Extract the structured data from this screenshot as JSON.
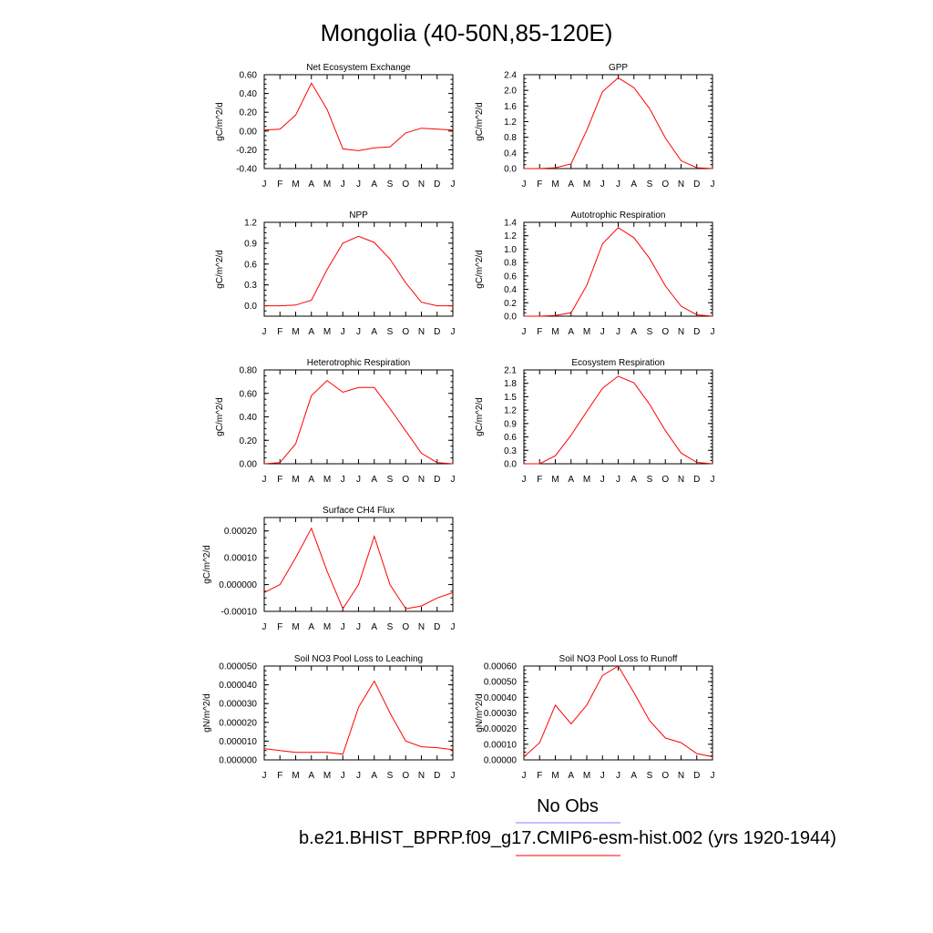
{
  "page_title": "Mongolia (40-50N,85-120E)",
  "months": [
    "J",
    "F",
    "M",
    "A",
    "M",
    "J",
    "J",
    "A",
    "S",
    "O",
    "N",
    "D",
    "J"
  ],
  "legend": {
    "obs_label": "No Obs",
    "obs_color": "#7f7fff",
    "model_label": "b.e21.BHIST_BPRP.f09_g17.CMIP6-esm-hist.002 (yrs 1920-1944)",
    "model_color": "#ff0000"
  },
  "chart_data": [
    {
      "type": "line",
      "title": "Net Ecosystem Exchange",
      "ylabel": "gC/m^2/d",
      "ylim": [
        -0.4,
        0.6
      ],
      "y_ticks": [
        "-0.40",
        "-0.20",
        "0.00",
        "0.20",
        "0.40",
        "0.60"
      ],
      "x": [
        "J",
        "F",
        "M",
        "A",
        "M",
        "J",
        "J",
        "A",
        "S",
        "O",
        "N",
        "D",
        "J"
      ],
      "series": [
        {
          "values": [
            0.01,
            0.02,
            0.17,
            0.51,
            0.23,
            -0.19,
            -0.21,
            -0.18,
            -0.17,
            -0.02,
            0.03,
            0.02,
            0.01
          ]
        }
      ],
      "grid": false
    },
    {
      "type": "line",
      "title": "GPP",
      "ylabel": "gC/m^2/d",
      "ylim": [
        0,
        2.4
      ],
      "y_ticks": [
        "0.0",
        "0.4",
        "0.8",
        "1.2",
        "1.6",
        "2.0",
        "2.4"
      ],
      "x": [
        "J",
        "F",
        "M",
        "A",
        "M",
        "J",
        "J",
        "A",
        "S",
        "O",
        "N",
        "D",
        "J"
      ],
      "series": [
        {
          "values": [
            0.0,
            0.0,
            0.02,
            0.12,
            0.98,
            1.97,
            2.32,
            2.07,
            1.53,
            0.78,
            0.2,
            0.02,
            0.0
          ]
        }
      ],
      "grid": false
    },
    {
      "type": "line",
      "title": "NPP",
      "ylabel": "gC/m^2/d",
      "ylim": [
        -0.15,
        1.2
      ],
      "y_ticks": [
        "0.0",
        "0.3",
        "0.6",
        "0.9",
        "1.2"
      ],
      "x": [
        "J",
        "F",
        "M",
        "A",
        "M",
        "J",
        "J",
        "A",
        "S",
        "O",
        "N",
        "D",
        "J"
      ],
      "series": [
        {
          "values": [
            0.0,
            0.0,
            0.01,
            0.08,
            0.52,
            0.9,
            1.0,
            0.91,
            0.67,
            0.33,
            0.05,
            0.0,
            0.0
          ]
        }
      ],
      "grid": false
    },
    {
      "type": "line",
      "title": "Autotrophic Respiration",
      "ylabel": "gC/m^2/d",
      "ylim": [
        0,
        1.4
      ],
      "y_ticks": [
        "0.0",
        "0.2",
        "0.4",
        "0.6",
        "0.8",
        "1.0",
        "1.2",
        "1.4"
      ],
      "x": [
        "J",
        "F",
        "M",
        "A",
        "M",
        "J",
        "J",
        "A",
        "S",
        "O",
        "N",
        "D",
        "J"
      ],
      "series": [
        {
          "values": [
            0.0,
            0.0,
            0.01,
            0.05,
            0.46,
            1.08,
            1.32,
            1.17,
            0.86,
            0.45,
            0.15,
            0.02,
            0.0
          ]
        }
      ],
      "grid": false
    },
    {
      "type": "line",
      "title": "Heterotrophic Respiration",
      "ylabel": "gC/m^2/d",
      "ylim": [
        0,
        0.8
      ],
      "y_ticks": [
        "0.00",
        "0.20",
        "0.40",
        "0.60",
        "0.80"
      ],
      "x": [
        "J",
        "F",
        "M",
        "A",
        "M",
        "J",
        "J",
        "A",
        "S",
        "O",
        "N",
        "D",
        "J"
      ],
      "series": [
        {
          "values": [
            0.0,
            0.01,
            0.17,
            0.58,
            0.71,
            0.61,
            0.65,
            0.65,
            0.47,
            0.28,
            0.09,
            0.01,
            0.0
          ]
        }
      ],
      "grid": false
    },
    {
      "type": "line",
      "title": "Ecosystem Respiration",
      "ylabel": "gC/m^2/d",
      "ylim": [
        0,
        2.1
      ],
      "y_ticks": [
        "0.0",
        "0.3",
        "0.6",
        "0.9",
        "1.2",
        "1.5",
        "1.8",
        "2.1"
      ],
      "x": [
        "J",
        "F",
        "M",
        "A",
        "M",
        "J",
        "J",
        "A",
        "S",
        "O",
        "N",
        "D",
        "J"
      ],
      "series": [
        {
          "values": [
            0.0,
            0.0,
            0.18,
            0.64,
            1.17,
            1.69,
            1.96,
            1.81,
            1.33,
            0.74,
            0.24,
            0.03,
            0.0
          ]
        }
      ],
      "grid": false
    },
    {
      "type": "line",
      "title": "Surface CH4 Flux",
      "ylabel": "gC/m^2/d",
      "ylim": [
        -0.0001,
        0.00025
      ],
      "y_ticks": [
        "-0.00010",
        "0.000000",
        "0.00010",
        "0.00020"
      ],
      "x": [
        "J",
        "F",
        "M",
        "A",
        "M",
        "J",
        "J",
        "A",
        "S",
        "O",
        "N",
        "D",
        "J"
      ],
      "series": [
        {
          "values": [
            -3e-05,
            0.0,
            0.0001,
            0.00021,
            5e-05,
            -9e-05,
            0.0,
            0.00018,
            0.0,
            -9e-05,
            -8e-05,
            -5e-05,
            -3e-05
          ]
        }
      ],
      "grid": false
    },
    {
      "type": "line",
      "title": "Soil NO3 Pool Loss to Leaching",
      "ylabel": "gN/m^2/d",
      "ylim": [
        0,
        5e-05
      ],
      "y_ticks": [
        "0.000000",
        "0.000010",
        "0.000020",
        "0.000030",
        "0.000040",
        "0.000050"
      ],
      "x": [
        "J",
        "F",
        "M",
        "A",
        "M",
        "J",
        "J",
        "A",
        "S",
        "O",
        "N",
        "D",
        "J"
      ],
      "series": [
        {
          "values": [
            6e-06,
            5e-06,
            4e-06,
            4e-06,
            4e-06,
            3e-06,
            2.8e-05,
            4.2e-05,
            2.5e-05,
            1e-05,
            7e-06,
            6.5e-06,
            5.5e-06
          ]
        }
      ],
      "grid": false
    },
    {
      "type": "line",
      "title": "Soil NO3 Pool Loss to Runoff",
      "ylabel": "gN/m^2/d",
      "ylim": [
        0,
        0.0006
      ],
      "y_ticks": [
        "0.00000",
        "0.00010",
        "0.00020",
        "0.00030",
        "0.00040",
        "0.00050",
        "0.00060"
      ],
      "x": [
        "J",
        "F",
        "M",
        "A",
        "M",
        "J",
        "J",
        "A",
        "S",
        "O",
        "N",
        "D",
        "J"
      ],
      "series": [
        {
          "values": [
            2e-05,
            0.00011,
            0.00035,
            0.00023,
            0.00035,
            0.00054,
            0.0006,
            0.00043,
            0.00025,
            0.00014,
            0.00011,
            4e-05,
            2e-05
          ]
        }
      ],
      "grid": false
    }
  ]
}
